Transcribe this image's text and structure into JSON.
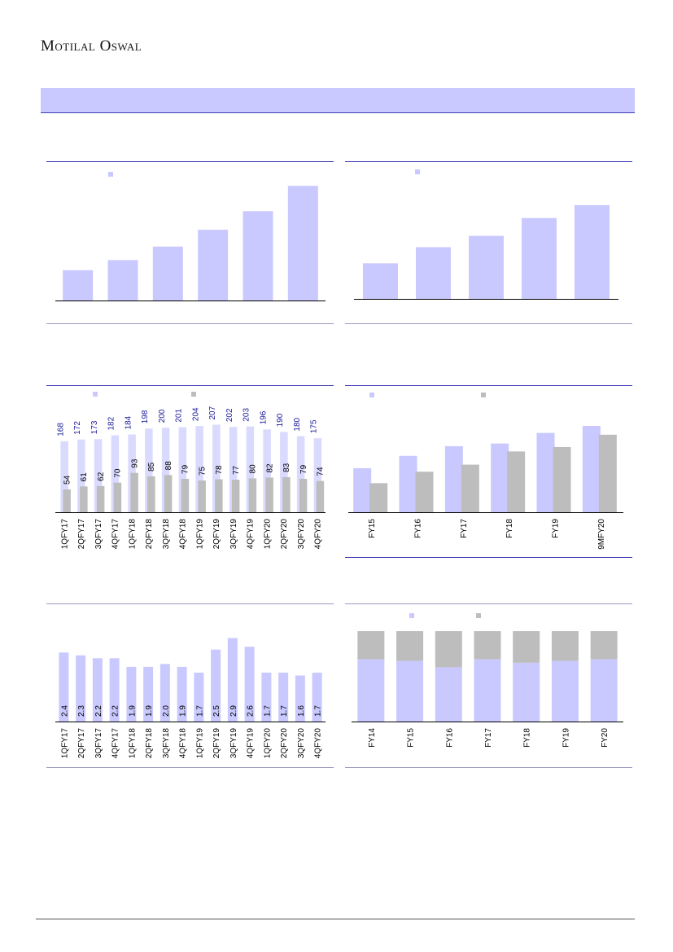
{
  "header": {
    "brand": "Motilal Oswal"
  },
  "colors": {
    "primary": "#c9c9ff",
    "secondary": "#bdbdbd",
    "label_blue": "#1a1a99",
    "rule": "#3b3bb0"
  },
  "chart_data": [
    {
      "type": "bar",
      "legend": "top-left",
      "series": [
        {
          "values": [
            18,
            24,
            32,
            42,
            53,
            68
          ]
        }
      ],
      "ylim": [
        0,
        72
      ]
    },
    {
      "type": "bar",
      "legend": "top-left",
      "series": [
        {
          "values": [
            22,
            32,
            39,
            50,
            58
          ]
        }
      ],
      "ylim": [
        0,
        65
      ]
    },
    {
      "type": "bar",
      "legend": "top-left",
      "categories": [
        "1QFY17",
        "2QFY17",
        "3QFY17",
        "4QFY17",
        "1QFY18",
        "2QFY18",
        "3QFY18",
        "4QFY18",
        "1QFY19",
        "2QFY19",
        "3QFY19",
        "4QFY19",
        "1QFY20",
        "2QFY20",
        "3QFY20",
        "4QFY20"
      ],
      "series": [
        {
          "values": [
            168,
            172,
            173,
            182,
            184,
            198,
            200,
            201,
            204,
            207,
            202,
            203,
            196,
            190,
            180,
            175
          ]
        },
        {
          "values": [
            54,
            61,
            62,
            70,
            93,
            85,
            88,
            79,
            75,
            78,
            77,
            80,
            82,
            83,
            79,
            74
          ]
        }
      ],
      "ylim": [
        0,
        210
      ]
    },
    {
      "type": "bar",
      "legend": "top-left",
      "categories": [
        "FY15",
        "FY16",
        "FY17",
        "FY18",
        "FY19",
        "9MFY20"
      ],
      "series": [
        {
          "values": [
            50,
            64,
            75,
            78,
            90,
            98
          ]
        },
        {
          "values": [
            33,
            46,
            54,
            69,
            74,
            88
          ]
        }
      ],
      "ylim": [
        0,
        110
      ]
    },
    {
      "type": "bar",
      "categories": [
        "1QFY17",
        "2QFY17",
        "3QFY17",
        "4QFY17",
        "1QFY18",
        "2QFY18",
        "3QFY18",
        "4QFY18",
        "1QFY19",
        "2QFY19",
        "3QFY19",
        "4QFY19",
        "1QFY20",
        "2QFY20",
        "3QFY20",
        "4QFY20"
      ],
      "series": [
        {
          "values": [
            2.4,
            2.3,
            2.2,
            2.2,
            1.9,
            1.9,
            2.0,
            1.9,
            1.7,
            2.5,
            2.9,
            2.6,
            1.7,
            1.7,
            1.6,
            1.7
          ]
        }
      ],
      "ylim": [
        0,
        3.0
      ]
    },
    {
      "type": "bar",
      "stacked": true,
      "legend": "top-left",
      "categories": [
        "FY14",
        "FY15",
        "FY16",
        "FY17",
        "FY18",
        "FY19",
        "FY20"
      ],
      "series": [
        {
          "values": [
            69,
            67,
            60,
            69,
            65,
            67,
            69
          ]
        },
        {
          "values": [
            31,
            33,
            40,
            31,
            35,
            33,
            31
          ]
        }
      ],
      "ylim": [
        0,
        100
      ]
    }
  ]
}
